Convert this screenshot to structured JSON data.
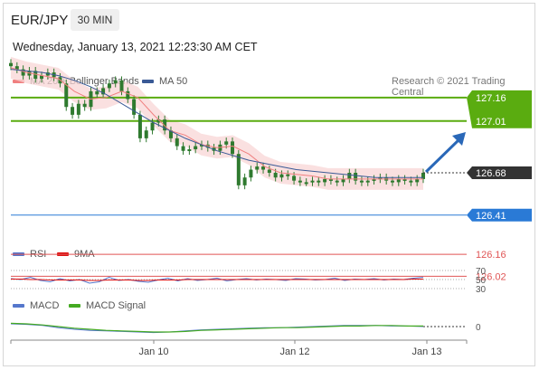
{
  "header": {
    "pair": "EUR/JPY",
    "timeframe": "30 MIN",
    "datetime": "Wednesday, January 13, 2021 12:23:30 AM CET",
    "credit": "Research © 2021 Trading Central"
  },
  "legend": {
    "ma20": {
      "label": "MA 20 + Bollinger Bands",
      "color": "#f08080"
    },
    "ma50": {
      "label": "MA 50",
      "color": "#3a5a96"
    },
    "rsi": {
      "label": "RSI",
      "color": "#5577cc"
    },
    "rsi_ma": {
      "label": "9MA",
      "color": "#dd1111"
    },
    "macd": {
      "label": "MACD",
      "color": "#5577cc"
    },
    "macd_signal": {
      "label": "MACD Signal",
      "color": "#44aa22"
    }
  },
  "chart_data": {
    "type": "candlestick",
    "price_panel": {
      "last_price": 126.68,
      "resistance_levels": [
        127.01,
        127.16
      ],
      "pivot": 126.41,
      "support_levels": [
        126.16,
        126.02
      ],
      "colors": {
        "resistance": "#5aac10",
        "pivot": "#2a7ad6",
        "support": "#e05555",
        "last": "#333333",
        "candle": "#2f7a2f"
      },
      "close_series": [
        127.36,
        127.34,
        127.3,
        127.33,
        127.28,
        127.3,
        127.32,
        127.29,
        127.25,
        127.1,
        127.05,
        127.12,
        127.1,
        127.2,
        127.18,
        127.22,
        127.25,
        127.27,
        127.2,
        127.15,
        127.05,
        126.9,
        126.95,
        127.0,
        127.02,
        126.95,
        126.9,
        126.85,
        126.82,
        126.83,
        126.85,
        126.86,
        126.84,
        126.82,
        126.86,
        126.88,
        126.8,
        126.6,
        126.65,
        126.7,
        126.72,
        126.7,
        126.68,
        126.65,
        126.67,
        126.66,
        126.63,
        126.62,
        126.62,
        126.63,
        126.62,
        126.64,
        126.63,
        126.62,
        126.64,
        126.68,
        126.63,
        126.62,
        126.63,
        126.64,
        126.65,
        126.63,
        126.62,
        126.64,
        126.63,
        126.62,
        126.64,
        126.68
      ],
      "ma50_series": [
        127.34,
        127.33,
        127.32,
        127.3,
        127.27,
        127.23,
        127.18,
        127.12,
        127.06,
        127.0,
        126.95,
        126.9,
        126.86,
        126.82,
        126.79,
        126.76,
        126.74,
        126.72,
        126.7,
        126.69,
        126.68,
        126.67,
        126.66,
        126.65,
        126.65,
        126.65,
        126.65
      ],
      "ma20_series": [
        127.35,
        127.32,
        127.3,
        127.28,
        127.2,
        127.15,
        127.16,
        127.2,
        127.16,
        127.05,
        126.95,
        126.92,
        126.86,
        126.84,
        126.85,
        126.8,
        126.72,
        126.68,
        126.67,
        126.66,
        126.64,
        126.64,
        126.64,
        126.64,
        126.64,
        126.64,
        126.64
      ]
    },
    "rsi_panel": {
      "levels": [
        70,
        50,
        30
      ],
      "rsi_series": [
        52,
        50,
        55,
        48,
        45,
        52,
        47,
        50,
        42,
        45,
        55,
        48,
        50,
        46,
        44,
        49,
        53,
        47,
        52,
        48,
        50,
        53,
        47,
        50,
        52,
        49,
        51,
        50,
        48,
        52,
        51,
        49,
        50,
        53,
        48,
        51,
        50,
        52,
        49,
        51,
        50,
        53,
        55
      ],
      "ma_series": [
        51,
        51,
        50,
        50,
        49,
        49,
        49,
        49,
        48,
        48,
        49,
        49,
        49,
        48,
        48,
        49,
        49,
        49,
        50,
        50,
        50,
        50,
        50,
        50,
        50,
        50,
        50,
        50,
        50,
        50,
        50,
        50,
        50,
        50,
        50,
        50,
        50,
        50,
        50,
        50,
        50,
        51,
        51
      ]
    },
    "macd_panel": {
      "levels": [
        0
      ],
      "macd_series": [
        0.05,
        0.04,
        0.02,
        -0.02,
        -0.05,
        -0.07,
        -0.08,
        -0.09,
        -0.1,
        -0.11,
        -0.1,
        -0.08,
        -0.06,
        -0.05,
        -0.04,
        -0.03,
        -0.02,
        -0.02,
        -0.01,
        0.0,
        0.01,
        0.02,
        0.02,
        0.02,
        0.01,
        0.01,
        0.0
      ],
      "signal_series": [
        0.06,
        0.05,
        0.03,
        0.0,
        -0.03,
        -0.05,
        -0.07,
        -0.08,
        -0.09,
        -0.1,
        -0.1,
        -0.09,
        -0.07,
        -0.06,
        -0.05,
        -0.04,
        -0.03,
        -0.02,
        -0.02,
        -0.01,
        0.0,
        0.01,
        0.01,
        0.02,
        0.02,
        0.01,
        0.01
      ]
    },
    "x_ticks": [
      "Jan 10",
      "Jan 12",
      "Jan 13"
    ],
    "projection": "up"
  }
}
